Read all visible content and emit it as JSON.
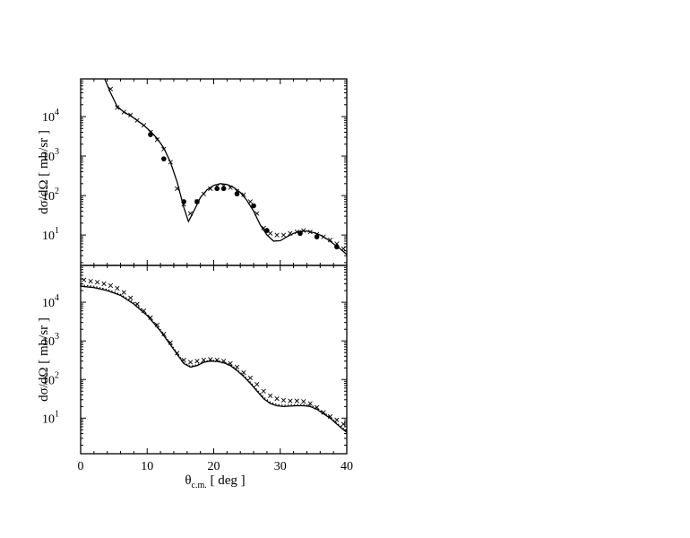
{
  "chart_data": [
    {
      "type": "scatter",
      "panel": "top",
      "ylabel": "dσ/dΩ  [ mb/sr ]",
      "xlim": [
        0,
        40
      ],
      "ylim": [
        1.7,
        90000
      ],
      "yscale": "log",
      "yticks": [
        {
          "value": 10,
          "mantissa": "10",
          "exponent": "1"
        },
        {
          "value": 100,
          "mantissa": "10",
          "exponent": "2"
        },
        {
          "value": 1000,
          "mantissa": "10",
          "exponent": "3"
        },
        {
          "value": 10000,
          "mantissa": "10",
          "exponent": "4"
        }
      ],
      "series": [
        {
          "style": "solid-line",
          "points": [
            [
              3.5,
              100000
            ],
            [
              4.5,
              40000
            ],
            [
              5.5,
              18000
            ],
            [
              6.5,
              13000
            ],
            [
              7.5,
              10500
            ],
            [
              8.5,
              8000
            ],
            [
              9.5,
              6000
            ],
            [
              10.5,
              4200
            ],
            [
              11.5,
              2800
            ],
            [
              12.5,
              1600
            ],
            [
              13.5,
              700
            ],
            [
              14.5,
              220
            ],
            [
              15.5,
              50
            ],
            [
              16.2,
              22
            ],
            [
              17.0,
              40
            ],
            [
              18.0,
              90
            ],
            [
              19.0,
              140
            ],
            [
              20.0,
              180
            ],
            [
              21.0,
              200
            ],
            [
              22.0,
              190
            ],
            [
              23.0,
              160
            ],
            [
              24.0,
              120
            ],
            [
              25.0,
              75
            ],
            [
              26.0,
              40
            ],
            [
              27.0,
              18
            ],
            [
              28.0,
              10
            ],
            [
              29.0,
              7
            ],
            [
              30.0,
              7.2
            ],
            [
              31.0,
              9
            ],
            [
              32.0,
              11
            ],
            [
              33.0,
              12.5
            ],
            [
              34.0,
              12.5
            ],
            [
              35.0,
              11.5
            ],
            [
              36.0,
              10
            ],
            [
              37.0,
              8
            ],
            [
              38.0,
              6
            ],
            [
              39.0,
              4.5
            ],
            [
              40.0,
              3.2
            ]
          ]
        },
        {
          "style": "cross",
          "points": [
            [
              4.5,
              50000
            ],
            [
              5.5,
              17000
            ],
            [
              6.5,
              13000
            ],
            [
              7.5,
              11000
            ],
            [
              8.5,
              8000
            ],
            [
              9.5,
              6000
            ],
            [
              10.5,
              4000
            ],
            [
              11.5,
              2600
            ],
            [
              12.5,
              1500
            ],
            [
              13.5,
              700
            ],
            [
              14.5,
              150
            ],
            [
              15.5,
              60
            ],
            [
              16.5,
              35
            ],
            [
              17.5,
              70
            ],
            [
              18.5,
              110
            ],
            [
              19.5,
              150
            ],
            [
              20.5,
              170
            ],
            [
              21.5,
              175
            ],
            [
              22.5,
              160
            ],
            [
              23.5,
              130
            ],
            [
              24.5,
              105
            ],
            [
              25.5,
              70
            ],
            [
              26.5,
              35
            ],
            [
              27.5,
              15
            ],
            [
              28.5,
              11
            ],
            [
              29.5,
              10
            ],
            [
              30.5,
              10
            ],
            [
              31.5,
              11
            ],
            [
              32.5,
              12
            ],
            [
              33.5,
              13
            ],
            [
              34.5,
              12
            ],
            [
              35.5,
              10.5
            ],
            [
              36.5,
              9
            ],
            [
              37.5,
              7.5
            ],
            [
              38.5,
              6
            ],
            [
              39.5,
              4.5
            ]
          ]
        },
        {
          "style": "filled-circle",
          "points": [
            [
              10.5,
              3500
            ],
            [
              12.5,
              850
            ],
            [
              15.5,
              70
            ],
            [
              17.5,
              70
            ],
            [
              20.5,
              150
            ],
            [
              21.5,
              150
            ],
            [
              23.5,
              110
            ],
            [
              26.0,
              55
            ],
            [
              28.0,
              13
            ],
            [
              33.0,
              11
            ],
            [
              35.5,
              9
            ],
            [
              38.5,
              5
            ]
          ]
        }
      ]
    },
    {
      "type": "scatter",
      "panel": "bottom",
      "ylabel": "dσ/dΩ  [ mb/sr ]",
      "xlabel": "θc.m.  [ deg ]",
      "xlim": [
        0,
        40
      ],
      "ylim": [
        1.2,
        90000
      ],
      "yscale": "log",
      "xticks": [
        0,
        10,
        20,
        30,
        40
      ],
      "yticks": [
        {
          "value": 10,
          "mantissa": "10",
          "exponent": "1"
        },
        {
          "value": 100,
          "mantissa": "10",
          "exponent": "2"
        },
        {
          "value": 1000,
          "mantissa": "10",
          "exponent": "3"
        },
        {
          "value": 10000,
          "mantissa": "10",
          "exponent": "4"
        }
      ],
      "series": [
        {
          "style": "solid-line",
          "points": [
            [
              0,
              26000
            ],
            [
              2,
              24000
            ],
            [
              4,
              20000
            ],
            [
              6,
              15000
            ],
            [
              8,
              9000
            ],
            [
              10,
              4500
            ],
            [
              12,
              1800
            ],
            [
              14,
              600
            ],
            [
              15.5,
              260
            ],
            [
              16.5,
              210
            ],
            [
              17.5,
              230
            ],
            [
              18.5,
              280
            ],
            [
              19.5,
              300
            ],
            [
              20.5,
              295
            ],
            [
              21.5,
              270
            ],
            [
              22.5,
              230
            ],
            [
              23.5,
              170
            ],
            [
              24.5,
              120
            ],
            [
              25.5,
              80
            ],
            [
              26.5,
              50
            ],
            [
              27.5,
              32
            ],
            [
              28.5,
              24
            ],
            [
              29.5,
              21
            ],
            [
              30.5,
              20
            ],
            [
              31.5,
              20.5
            ],
            [
              32.5,
              21
            ],
            [
              33.5,
              21
            ],
            [
              34.5,
              20
            ],
            [
              35.5,
              17
            ],
            [
              36.5,
              13
            ],
            [
              37.5,
              10
            ],
            [
              38.5,
              7
            ],
            [
              39.5,
              5
            ],
            [
              40,
              4.3
            ]
          ]
        },
        {
          "style": "dotted-line",
          "points": [
            [
              0,
              28000
            ],
            [
              2,
              26000
            ],
            [
              4,
              21500
            ],
            [
              6,
              16000
            ],
            [
              8,
              9800
            ],
            [
              10,
              4900
            ],
            [
              12,
              1950
            ],
            [
              14,
              650
            ],
            [
              15.5,
              275
            ],
            [
              16.5,
              220
            ],
            [
              17.5,
              240
            ],
            [
              18.5,
              290
            ],
            [
              19.5,
              315
            ],
            [
              20.5,
              310
            ],
            [
              21.5,
              285
            ],
            [
              22.5,
              245
            ],
            [
              23.5,
              180
            ],
            [
              24.5,
              128
            ],
            [
              25.5,
              86
            ],
            [
              26.5,
              54
            ],
            [
              27.5,
              35
            ],
            [
              28.5,
              26
            ],
            [
              29.5,
              22.5
            ],
            [
              30.5,
              21.5
            ],
            [
              31.5,
              22
            ],
            [
              32.5,
              22.5
            ],
            [
              33.5,
              22.5
            ],
            [
              34.5,
              21.5
            ],
            [
              35.5,
              18.5
            ],
            [
              36.5,
              14
            ],
            [
              37.5,
              10.8
            ],
            [
              38.5,
              7.5
            ],
            [
              39.5,
              5.4
            ],
            [
              40,
              4.6
            ]
          ]
        },
        {
          "style": "cross",
          "points": [
            [
              0.5,
              38000
            ],
            [
              1.5,
              35000
            ],
            [
              2.5,
              33000
            ],
            [
              3.5,
              30000
            ],
            [
              4.5,
              27000
            ],
            [
              5.5,
              23000
            ],
            [
              6.5,
              18000
            ],
            [
              7.5,
              13000
            ],
            [
              8.5,
              9000
            ],
            [
              9.5,
              6000
            ],
            [
              10.5,
              4000
            ],
            [
              11.5,
              2600
            ],
            [
              12.5,
              1500
            ],
            [
              13.5,
              900
            ],
            [
              14.5,
              480
            ],
            [
              15.5,
              320
            ],
            [
              16.5,
              280
            ],
            [
              17.5,
              300
            ],
            [
              18.5,
              320
            ],
            [
              19.5,
              330
            ],
            [
              20.5,
              320
            ],
            [
              21.5,
              300
            ],
            [
              22.5,
              260
            ],
            [
              23.5,
              210
            ],
            [
              24.5,
              150
            ],
            [
              25.5,
              110
            ],
            [
              26.5,
              75
            ],
            [
              27.5,
              50
            ],
            [
              28.5,
              38
            ],
            [
              29.5,
              32
            ],
            [
              30.5,
              29
            ],
            [
              31.5,
              28
            ],
            [
              32.5,
              28
            ],
            [
              33.5,
              27
            ],
            [
              34.5,
              24
            ],
            [
              35.5,
              19
            ],
            [
              36.5,
              14
            ],
            [
              37.5,
              11
            ],
            [
              38.5,
              9
            ],
            [
              39.5,
              7
            ]
          ]
        }
      ]
    }
  ]
}
